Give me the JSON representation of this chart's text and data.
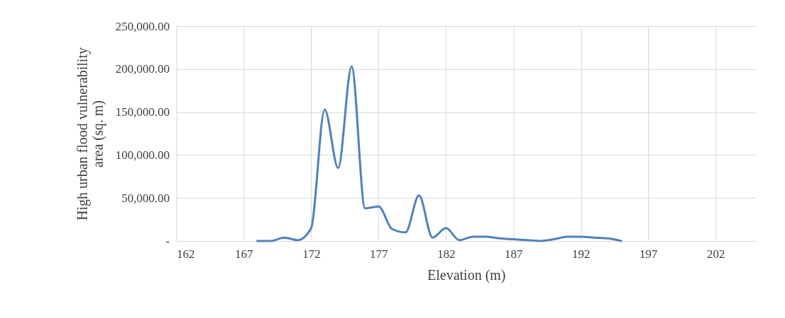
{
  "chart_data": {
    "type": "line",
    "xlabel": "Elevation (m)",
    "ylabel": "High urban flood vulnerability area (sq. m)",
    "x": [
      168,
      169,
      170,
      171,
      172,
      173,
      174,
      175,
      176,
      177,
      178,
      179,
      180,
      181,
      182,
      183,
      184,
      185,
      186,
      187,
      188,
      189,
      190,
      191,
      192,
      193,
      194,
      195
    ],
    "series": [
      {
        "color": "#4f81bd",
        "values": [
          0,
          0,
          4000,
          1000,
          15000,
          153000,
          85000,
          203000,
          38000,
          40000,
          14000,
          10000,
          53000,
          4000,
          15000,
          1000,
          5000,
          5000,
          3000,
          2000,
          1000,
          0,
          2000,
          5000,
          5000,
          4000,
          3000,
          0
        ]
      }
    ],
    "xlim": [
      162,
      205
    ],
    "xticks": [
      162,
      167,
      172,
      177,
      182,
      187,
      192,
      197,
      202
    ],
    "ylim": [
      0,
      250000
    ],
    "yticks": [
      {
        "value": 0,
        "label": "-"
      },
      {
        "value": 50000,
        "label": "50,000.00"
      },
      {
        "value": 100000,
        "label": "100,000.00"
      },
      {
        "value": 150000,
        "label": "150,000.00"
      },
      {
        "value": 200000,
        "label": "200,000.00"
      },
      {
        "value": 250000,
        "label": "250,000.00"
      }
    ],
    "grid": true,
    "marker": "none",
    "line_style": "solid"
  }
}
